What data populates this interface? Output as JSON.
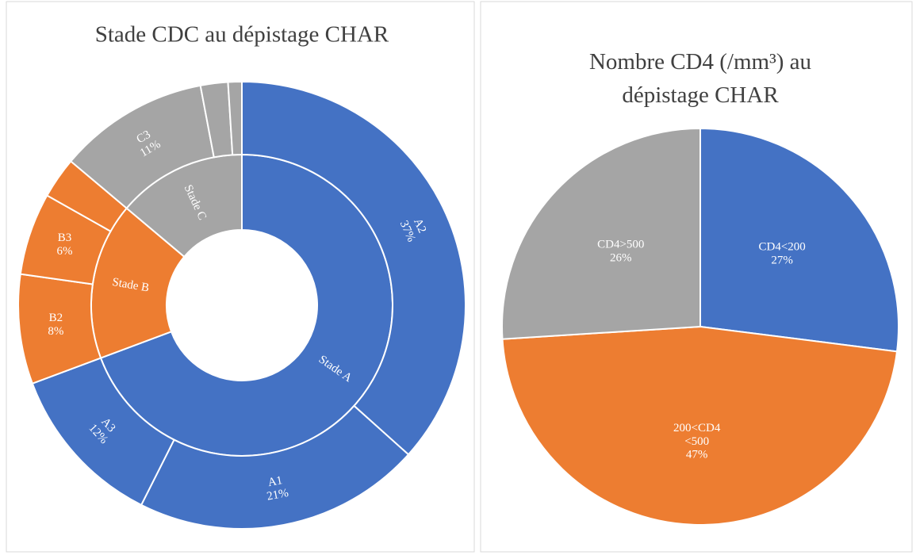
{
  "chart_data": [
    {
      "type": "sunburst",
      "title": "Stade CDC au dépistage CHAR",
      "groups": [
        {
          "name": "Stade A",
          "value": 70,
          "color": "#4472c4",
          "children": {
            "names": [
              "A2",
              "A1",
              "A3"
            ],
            "values": [
              37,
              21,
              12
            ],
            "value_labels": [
              "37%",
              "21%",
              "12%"
            ]
          }
        },
        {
          "name": "Stade B",
          "value": 17,
          "color": "#ed7d31",
          "children": {
            "names": [
              "B2",
              "B3",
              null
            ],
            "values": [
              8,
              6,
              3
            ],
            "value_labels": [
              "8%",
              "6%",
              null
            ]
          }
        },
        {
          "name": "Stade C",
          "value": 14,
          "color": "#a5a5a5",
          "children": {
            "names": [
              "C3",
              null,
              null
            ],
            "values": [
              11,
              2,
              1
            ],
            "value_labels": [
              "11%",
              null,
              null
            ]
          }
        }
      ]
    },
    {
      "type": "pie",
      "title": "Nombre CD4 (/mm³) au dépistage CHAR",
      "categories": [
        "CD4<200",
        "200<CD4 <500",
        "CD4>500"
      ],
      "values": [
        27,
        47,
        26
      ],
      "value_labels": [
        "27%",
        "47%",
        "26%"
      ],
      "colors": [
        "#4472c4",
        "#ed7d31",
        "#a5a5a5"
      ]
    }
  ]
}
